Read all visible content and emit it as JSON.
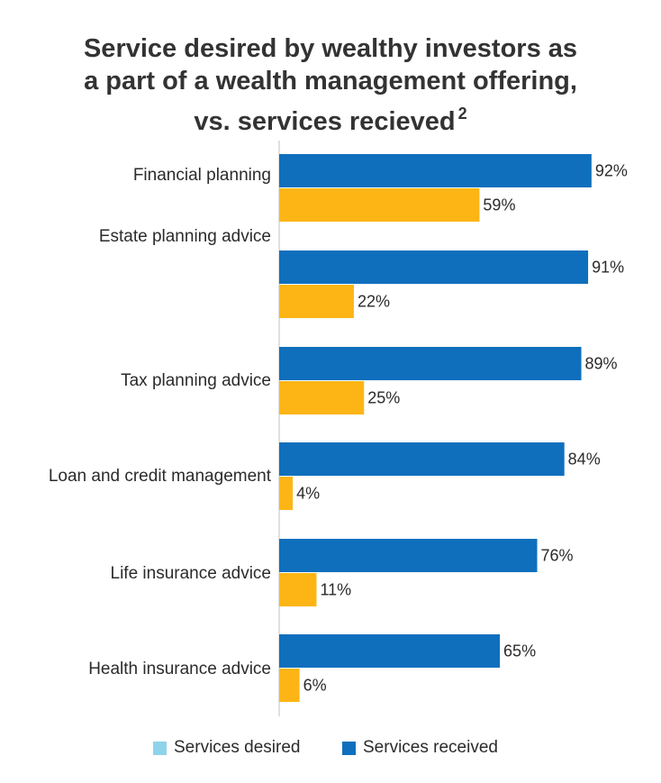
{
  "chart_data": {
    "type": "bar",
    "orientation": "horizontal",
    "title_line1": "Service desired by wealthy investors as",
    "title_line2": "a part of a wealth management offering,",
    "title_line3": "vs. services recieved",
    "title_superscript": "2",
    "categories": [
      "Financial planning",
      "Estate planning advice",
      "Tax planning advice",
      "Loan and credit management",
      "Life insurance advice",
      "Health insurance advice"
    ],
    "series": [
      {
        "name": "Services received",
        "color": "#0f6fbd",
        "values": [
          92,
          91,
          89,
          84,
          76,
          65
        ],
        "labels": [
          "92%",
          "91%",
          "89%",
          "84%",
          "76%",
          "65%"
        ]
      },
      {
        "name": "",
        "color": "#fdb515",
        "values": [
          59,
          22,
          25,
          4,
          11,
          6
        ],
        "labels": [
          "59%",
          "22%",
          "25%",
          "4%",
          "11%",
          "6%"
        ]
      }
    ],
    "legend": [
      {
        "label": "Services desired",
        "color": "#8fd3ea"
      },
      {
        "label": "Services received",
        "color": "#0f6fbd"
      }
    ],
    "xlim": [
      0,
      100
    ],
    "grid": false,
    "legend_position": "bottom"
  }
}
